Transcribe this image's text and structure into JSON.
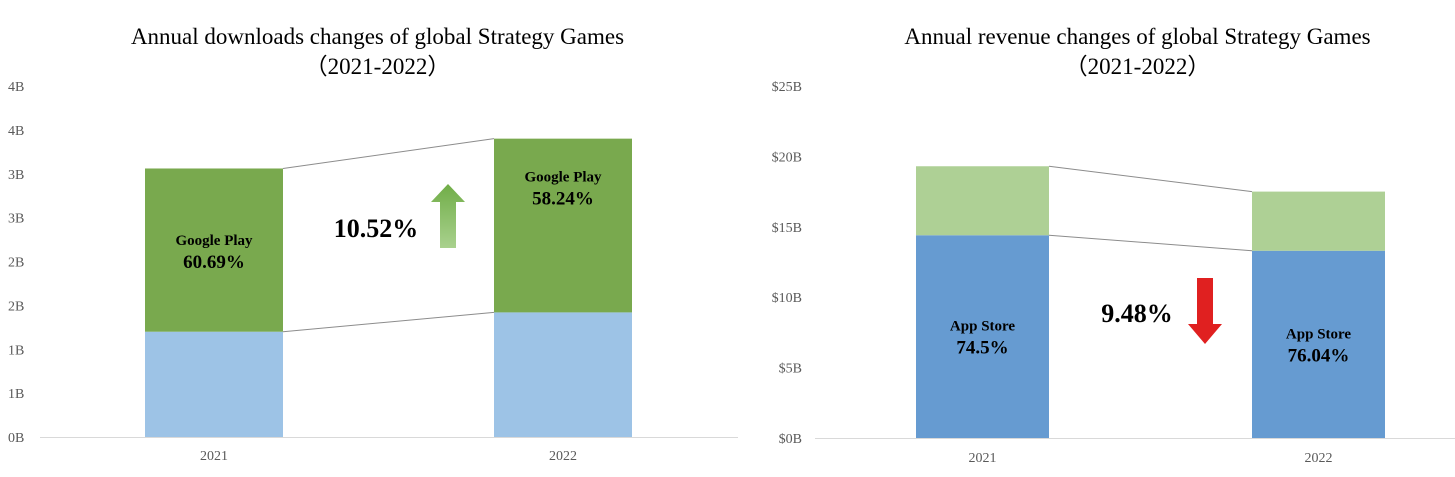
{
  "chart_data": [
    {
      "type": "bar",
      "stacked": true,
      "title": "Annual downloads changes of global Strategy Games",
      "subtitle": "（2021-2022）",
      "categories": [
        "2021",
        "2022"
      ],
      "yticks": [
        "0B",
        "1B",
        "1B",
        "2B",
        "2B",
        "3B",
        "3B",
        "4B",
        "4B"
      ],
      "ylim": [
        0,
        4
      ],
      "series": [
        {
          "name": "App Store",
          "values": [
            1.2,
            1.42
          ],
          "color": "#9dc3e6"
        },
        {
          "name": "Google Play",
          "values": [
            1.86,
            1.98
          ],
          "color": "#79a94e"
        }
      ],
      "segment_labels": [
        {
          "category": "2021",
          "series": "Google Play",
          "name": "Google Play",
          "percent": "60.69%"
        },
        {
          "category": "2022",
          "series": "Google Play",
          "name": "Google Play",
          "percent": "58.24%"
        }
      ],
      "change": {
        "label": "10.52%",
        "direction": "up",
        "color": "#70ad47"
      }
    },
    {
      "type": "bar",
      "stacked": true,
      "title": "Annual revenue changes of global Strategy Games",
      "subtitle": "（2021-2022）",
      "categories": [
        "2021",
        "2022"
      ],
      "yticks": [
        "$0B",
        "$5B",
        "$10B",
        "$15B",
        "$20B",
        "$25B"
      ],
      "ylim": [
        0,
        25
      ],
      "series": [
        {
          "name": "App Store",
          "values": [
            14.4,
            13.3
          ],
          "color": "#669bd1"
        },
        {
          "name": "Google Play",
          "values": [
            4.9,
            4.2
          ],
          "color": "#aed095"
        }
      ],
      "segment_labels": [
        {
          "category": "2021",
          "series": "App Store",
          "name": "App Store",
          "percent": "74.5%"
        },
        {
          "category": "2022",
          "series": "App Store",
          "name": "App Store",
          "percent": "76.04%"
        }
      ],
      "change": {
        "label": "9.48%",
        "direction": "down",
        "color": "#e02020"
      }
    }
  ]
}
